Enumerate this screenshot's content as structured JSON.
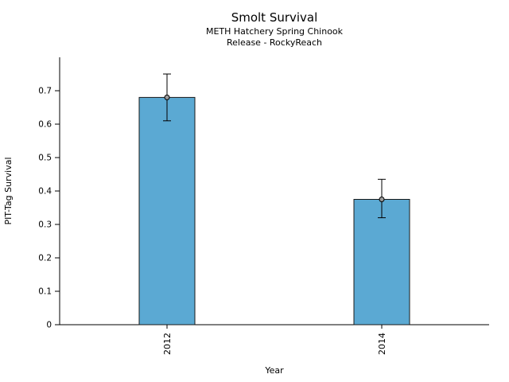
{
  "chart_data": {
    "type": "bar",
    "title": "Smolt Survival",
    "subtitle_line1": "METH Hatchery Spring Chinook",
    "subtitle_line2": "Release - RockyReach",
    "xlabel": "Year",
    "ylabel": "PIT-Tag Survival",
    "categories": [
      "2012",
      "2014"
    ],
    "values": [
      0.68,
      0.375
    ],
    "error_low": [
      0.61,
      0.32
    ],
    "error_high": [
      0.75,
      0.435
    ],
    "ylim": [
      0,
      0.8
    ],
    "yticks": [
      0,
      0.1,
      0.2,
      0.3,
      0.4,
      0.5,
      0.6,
      0.7
    ],
    "ytick_labels": [
      "0",
      "0.1",
      "0.2",
      "0.3",
      "0.4",
      "0.5",
      "0.6",
      "0.7"
    ],
    "bar_color": "#5BA9D3",
    "bar_edge_color": "#1a1a1a",
    "marker_fill": "#9a9a9a",
    "axis_color": "#000000",
    "legend": false,
    "grid": false
  }
}
